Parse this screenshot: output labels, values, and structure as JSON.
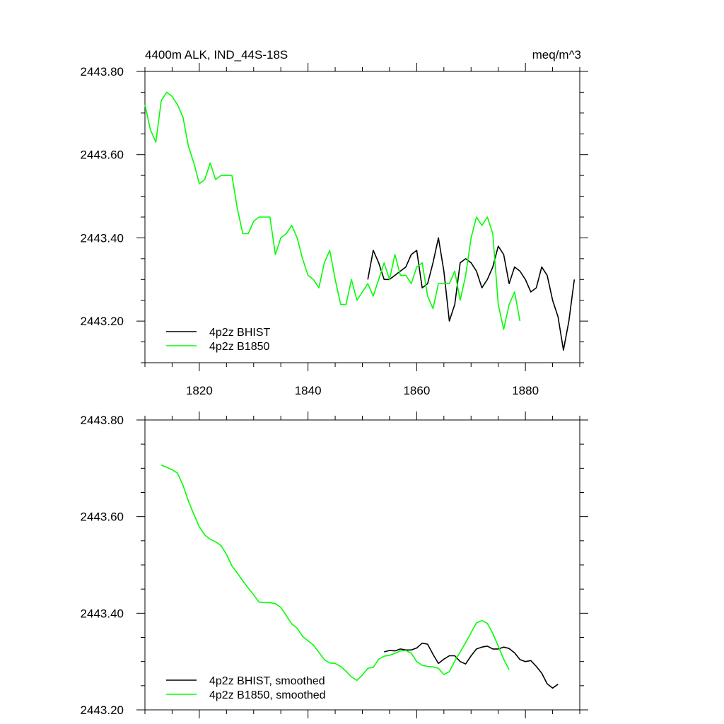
{
  "colors": {
    "bhist": "#000000",
    "b1850": "#00ff00",
    "frame": "#000000"
  },
  "chart_data": [
    {
      "type": "line",
      "title_left": "4400m ALK, IND_44S-18S",
      "title_right": "meq/m^3",
      "xlim": [
        1810,
        1890
      ],
      "ylim": [
        2443.1,
        2443.8
      ],
      "yticks": [
        2443.2,
        2443.4,
        2443.6,
        2443.8
      ],
      "ytick_labels": [
        "2443.20",
        "2443.40",
        "2443.60",
        "2443.80"
      ],
      "xticks": [
        1820,
        1840,
        1860,
        1880
      ],
      "xtick_labels": [
        "1820",
        "1840",
        "1860",
        "1880"
      ],
      "legend_position": "bottom-left",
      "series": [
        {
          "name": "4p2z BHIST",
          "color": "#000000",
          "x": [
            1851,
            1852,
            1853,
            1854,
            1855,
            1856,
            1857,
            1858,
            1859,
            1860,
            1861,
            1862,
            1863,
            1864,
            1865,
            1866,
            1867,
            1868,
            1869,
            1870,
            1871,
            1872,
            1873,
            1874,
            1875,
            1876,
            1877,
            1878,
            1879,
            1880,
            1881,
            1882,
            1883,
            1884,
            1885,
            1886,
            1887,
            1888,
            1889
          ],
          "y": [
            2443.3,
            2443.37,
            2443.34,
            2443.3,
            2443.3,
            2443.31,
            2443.32,
            2443.33,
            2443.36,
            2443.37,
            2443.28,
            2443.29,
            2443.34,
            2443.4,
            2443.32,
            2443.2,
            2443.24,
            2443.34,
            2443.35,
            2443.34,
            2443.32,
            2443.28,
            2443.3,
            2443.33,
            2443.38,
            2443.36,
            2443.29,
            2443.33,
            2443.32,
            2443.3,
            2443.27,
            2443.28,
            2443.33,
            2443.31,
            2443.25,
            2443.21,
            2443.13,
            2443.2,
            2443.3
          ]
        },
        {
          "name": "4p2z B1850",
          "color": "#00ff00",
          "x": [
            1810,
            1811,
            1812,
            1813,
            1814,
            1815,
            1816,
            1817,
            1818,
            1819,
            1820,
            1821,
            1822,
            1823,
            1824,
            1825,
            1826,
            1827,
            1828,
            1829,
            1830,
            1831,
            1832,
            1833,
            1834,
            1835,
            1836,
            1837,
            1838,
            1839,
            1840,
            1841,
            1842,
            1843,
            1844,
            1845,
            1846,
            1847,
            1848,
            1849,
            1850,
            1851,
            1852,
            1853,
            1854,
            1855,
            1856,
            1857,
            1858,
            1859,
            1860,
            1861,
            1862,
            1863,
            1864,
            1865,
            1866,
            1867,
            1868,
            1869,
            1870,
            1871,
            1872,
            1873,
            1874,
            1875,
            1876,
            1877,
            1878,
            1879
          ],
          "y": [
            2443.72,
            2443.66,
            2443.63,
            2443.73,
            2443.75,
            2443.74,
            2443.72,
            2443.69,
            2443.62,
            2443.58,
            2443.53,
            2443.54,
            2443.58,
            2443.54,
            2443.55,
            2443.55,
            2443.55,
            2443.47,
            2443.41,
            2443.41,
            2443.44,
            2443.45,
            2443.45,
            2443.45,
            2443.36,
            2443.4,
            2443.41,
            2443.43,
            2443.4,
            2443.35,
            2443.31,
            2443.3,
            2443.28,
            2443.34,
            2443.37,
            2443.3,
            2443.24,
            2443.24,
            2443.3,
            2443.25,
            2443.27,
            2443.29,
            2443.26,
            2443.3,
            2443.34,
            2443.3,
            2443.36,
            2443.31,
            2443.31,
            2443.29,
            2443.33,
            2443.34,
            2443.26,
            2443.23,
            2443.29,
            2443.29,
            2443.29,
            2443.32,
            2443.25,
            2443.31,
            2443.4,
            2443.45,
            2443.43,
            2443.45,
            2443.41,
            2443.24,
            2443.18,
            2443.24,
            2443.27,
            2443.2
          ]
        }
      ]
    },
    {
      "type": "line",
      "xlim": [
        1810,
        1890
      ],
      "ylim": [
        2443.2,
        2443.8
      ],
      "yticks": [
        2443.2,
        2443.4,
        2443.6,
        2443.8
      ],
      "ytick_labels": [
        "2443.20",
        "2443.40",
        "2443.60",
        "2443.80"
      ],
      "xticks": [
        1820,
        1840,
        1860,
        1880
      ],
      "legend_position": "bottom-left",
      "series": [
        {
          "name": "4p2z BHIST, smoothed",
          "color": "#000000",
          "x": [
            1854,
            1855,
            1856,
            1857,
            1858,
            1859,
            1860,
            1861,
            1862,
            1863,
            1864,
            1865,
            1866,
            1867,
            1868,
            1869,
            1870,
            1871,
            1872,
            1873,
            1874,
            1875,
            1876,
            1877,
            1878,
            1879,
            1880,
            1881,
            1882,
            1883,
            1884,
            1885,
            1886
          ],
          "y": [
            2443.32,
            2443.323,
            2443.322,
            2443.326,
            2443.324,
            2443.324,
            2443.328,
            2443.338,
            2443.336,
            2443.315,
            2443.296,
            2443.305,
            2443.312,
            2443.312,
            2443.3,
            2443.295,
            2443.312,
            2443.326,
            2443.33,
            2443.332,
            2443.326,
            2443.326,
            2443.33,
            2443.327,
            2443.318,
            2443.304,
            2443.3,
            2443.302,
            2443.29,
            2443.276,
            2443.254,
            2443.245,
            2443.253
          ]
        },
        {
          "name": "4p2z B1850, smoothed",
          "color": "#00ff00",
          "x": [
            1813,
            1814,
            1815,
            1816,
            1817,
            1818,
            1819,
            1820,
            1821,
            1822,
            1823,
            1824,
            1825,
            1826,
            1827,
            1828,
            1829,
            1830,
            1831,
            1832,
            1833,
            1834,
            1835,
            1836,
            1837,
            1838,
            1839,
            1840,
            1841,
            1842,
            1843,
            1844,
            1845,
            1846,
            1847,
            1848,
            1849,
            1850,
            1851,
            1852,
            1853,
            1854,
            1855,
            1856,
            1857,
            1858,
            1859,
            1860,
            1861,
            1862,
            1863,
            1864,
            1865,
            1866,
            1867,
            1868,
            1869,
            1870,
            1871,
            1872,
            1873,
            1874,
            1875,
            1876,
            1877
          ],
          "y": [
            2443.707,
            2443.702,
            2443.697,
            2443.69,
            2443.665,
            2443.632,
            2443.605,
            2443.579,
            2443.562,
            2443.553,
            2443.548,
            2443.54,
            2443.522,
            2443.498,
            2443.483,
            2443.467,
            2443.452,
            2443.438,
            2443.423,
            2443.422,
            2443.422,
            2443.42,
            2443.412,
            2443.395,
            2443.378,
            2443.369,
            2443.352,
            2443.343,
            2443.334,
            2443.319,
            2443.304,
            2443.297,
            2443.296,
            2443.29,
            2443.28,
            2443.268,
            2443.261,
            2443.272,
            2443.286,
            2443.288,
            2443.305,
            2443.311,
            2443.313,
            2443.317,
            2443.322,
            2443.323,
            2443.317,
            2443.3,
            2443.292,
            2443.29,
            2443.289,
            2443.286,
            2443.273,
            2443.279,
            2443.301,
            2443.32,
            2443.339,
            2443.36,
            2443.38,
            2443.385,
            2443.379,
            2443.358,
            2443.332,
            2443.305,
            2443.283
          ]
        }
      ]
    }
  ]
}
